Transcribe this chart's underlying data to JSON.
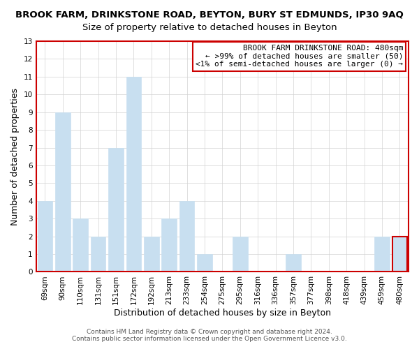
{
  "title": "BROOK FARM, DRINKSTONE ROAD, BEYTON, BURY ST EDMUNDS, IP30 9AQ",
  "subtitle": "Size of property relative to detached houses in Beyton",
  "xlabel": "Distribution of detached houses by size in Beyton",
  "ylabel": "Number of detached properties",
  "categories": [
    "69sqm",
    "90sqm",
    "110sqm",
    "131sqm",
    "151sqm",
    "172sqm",
    "192sqm",
    "213sqm",
    "233sqm",
    "254sqm",
    "275sqm",
    "295sqm",
    "316sqm",
    "336sqm",
    "357sqm",
    "377sqm",
    "398sqm",
    "418sqm",
    "439sqm",
    "459sqm",
    "480sqm"
  ],
  "values": [
    4,
    9,
    3,
    2,
    7,
    11,
    2,
    3,
    4,
    1,
    0,
    2,
    0,
    0,
    1,
    0,
    0,
    0,
    0,
    2,
    2
  ],
  "bar_color": "#c8dff0",
  "bar_edge_color": "#c8dff0",
  "ylim": [
    0,
    13
  ],
  "yticks": [
    0,
    1,
    2,
    3,
    4,
    5,
    6,
    7,
    8,
    9,
    10,
    11,
    12,
    13
  ],
  "highlight_edge_color": "#cc0000",
  "plot_border_color": "#cc0000",
  "annotation_box_edge": "#cc0000",
  "annotation_lines": [
    "BROOK FARM DRINKSTONE ROAD: 480sqm",
    "← >99% of detached houses are smaller (50)",
    "<1% of semi-detached houses are larger (0) →"
  ],
  "footer_lines": [
    "Contains HM Land Registry data © Crown copyright and database right 2024.",
    "Contains public sector information licensed under the Open Government Licence v3.0."
  ],
  "title_fontsize": 9.5,
  "subtitle_fontsize": 9.5,
  "axis_label_fontsize": 9,
  "tick_fontsize": 7.5,
  "annotation_fontsize": 8,
  "footer_fontsize": 6.5
}
